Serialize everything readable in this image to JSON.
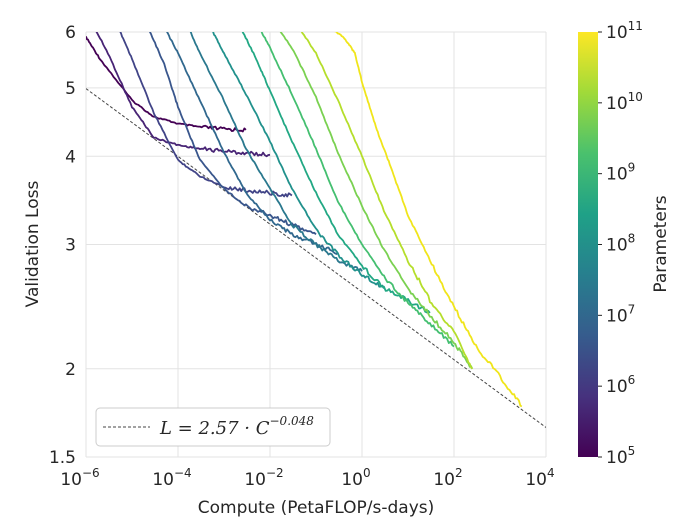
{
  "chart_data": {
    "type": "line",
    "xlabel": "Compute (PetaFLOP/s-days)",
    "ylabel": "Validation Loss",
    "xscale": "log",
    "yscale": "log",
    "xlim": [
      1e-06,
      10000
    ],
    "ylim": [
      1.5,
      6
    ],
    "x_ticks": [
      {
        "base": "10",
        "exp": "−6"
      },
      {
        "base": "10",
        "exp": "−4"
      },
      {
        "base": "10",
        "exp": "−2"
      },
      {
        "base": "10",
        "exp": "0"
      },
      {
        "base": "10",
        "exp": "2"
      },
      {
        "base": "10",
        "exp": "4"
      }
    ],
    "y_ticks": [
      "1.5",
      "2",
      "3",
      "4",
      "5",
      "6"
    ],
    "grid": true,
    "legend": {
      "placement": "lower-left",
      "entry": {
        "base": "L = 2.57 · C",
        "exp": "−0.048"
      }
    },
    "fit_line": {
      "coef": 2.57,
      "exponent": -0.048,
      "style": "dashed",
      "color": "#444444"
    },
    "colorbar": {
      "label": "Parameters",
      "scale": "log",
      "range": [
        100000.0,
        100000000000.0
      ],
      "ticks": [
        {
          "base": "10",
          "exp": "5"
        },
        {
          "base": "10",
          "exp": "6"
        },
        {
          "base": "10",
          "exp": "7"
        },
        {
          "base": "10",
          "exp": "8"
        },
        {
          "base": "10",
          "exp": "9"
        },
        {
          "base": "10",
          "exp": "10"
        },
        {
          "base": "10",
          "exp": "11"
        }
      ],
      "colormap": [
        "#440154",
        "#46327e",
        "#365c8d",
        "#277f8e",
        "#1fa187",
        "#4ac16d",
        "#a0da39",
        "#fde725"
      ]
    },
    "series": [
      {
        "params": 100000.0,
        "color": "#440154",
        "points": [
          [
            1e-06,
            5.9
          ],
          [
            2e-06,
            5.5
          ],
          [
            1e-05,
            4.8
          ],
          [
            3e-05,
            4.55
          ],
          [
            0.0001,
            4.45
          ],
          [
            0.0003,
            4.4
          ],
          [
            0.001,
            4.37
          ],
          [
            0.003,
            4.36
          ]
        ]
      },
      {
        "params": 300000.0,
        "color": "#482475",
        "points": [
          [
            1e-06,
            6.4
          ],
          [
            3e-06,
            5.6
          ],
          [
            1e-05,
            4.7
          ],
          [
            3e-05,
            4.25
          ],
          [
            0.0001,
            4.15
          ],
          [
            0.0003,
            4.1
          ],
          [
            0.001,
            4.07
          ],
          [
            0.003,
            4.04
          ],
          [
            0.01,
            4.02
          ]
        ]
      },
      {
        "params": 1000000.0,
        "color": "#414487",
        "points": [
          [
            5e-06,
            6.1
          ],
          [
            1e-05,
            5.5
          ],
          [
            3e-05,
            4.6
          ],
          [
            0.0001,
            3.95
          ],
          [
            0.0003,
            3.75
          ],
          [
            0.001,
            3.62
          ],
          [
            0.003,
            3.58
          ],
          [
            0.01,
            3.55
          ],
          [
            0.03,
            3.52
          ]
        ]
      },
      {
        "params": 3000000.0,
        "color": "#39568c",
        "points": [
          [
            2e-05,
            6.2
          ],
          [
            5e-05,
            5.4
          ],
          [
            0.0001,
            4.7
          ],
          [
            0.0003,
            3.95
          ],
          [
            0.001,
            3.6
          ],
          [
            0.003,
            3.4
          ],
          [
            0.01,
            3.3
          ],
          [
            0.03,
            3.2
          ],
          [
            0.1,
            3.1
          ]
        ]
      },
      {
        "params": 10000000.0,
        "color": "#31688e",
        "points": [
          [
            5e-05,
            6.1
          ],
          [
            0.0001,
            5.6
          ],
          [
            0.0003,
            4.8
          ],
          [
            0.001,
            4.05
          ],
          [
            0.003,
            3.55
          ],
          [
            0.01,
            3.25
          ],
          [
            0.03,
            3.1
          ],
          [
            0.1,
            3.0
          ],
          [
            0.3,
            2.92
          ]
        ]
      },
      {
        "params": 30000000.0,
        "color": "#2a788e",
        "points": [
          [
            0.00015,
            6.2
          ],
          [
            0.0003,
            5.6
          ],
          [
            0.001,
            4.8
          ],
          [
            0.003,
            4.1
          ],
          [
            0.01,
            3.6
          ],
          [
            0.03,
            3.2
          ],
          [
            0.1,
            3.0
          ],
          [
            0.3,
            2.85
          ],
          [
            1,
            2.75
          ]
        ]
      },
      {
        "params": 100000000.0,
        "color": "#21918c",
        "points": [
          [
            0.0005,
            6.1
          ],
          [
            0.001,
            5.6
          ],
          [
            0.003,
            4.9
          ],
          [
            0.01,
            4.2
          ],
          [
            0.03,
            3.6
          ],
          [
            0.1,
            3.15
          ],
          [
            0.3,
            2.9
          ],
          [
            1,
            2.72
          ],
          [
            3,
            2.6
          ]
        ]
      },
      {
        "params": 300000000.0,
        "color": "#22a884",
        "points": [
          [
            0.002,
            6.2
          ],
          [
            0.005,
            5.5
          ],
          [
            0.01,
            4.95
          ],
          [
            0.03,
            4.2
          ],
          [
            0.1,
            3.55
          ],
          [
            0.3,
            3.1
          ],
          [
            1,
            2.8
          ],
          [
            3,
            2.6
          ],
          [
            10,
            2.5
          ],
          [
            30,
            2.4
          ]
        ]
      },
      {
        "params": 1000000000.0,
        "color": "#44bf70",
        "points": [
          [
            0.005,
            6.2
          ],
          [
            0.01,
            5.7
          ],
          [
            0.03,
            4.9
          ],
          [
            0.1,
            4.1
          ],
          [
            0.3,
            3.45
          ],
          [
            1,
            3.0
          ],
          [
            3,
            2.7
          ],
          [
            10,
            2.48
          ],
          [
            30,
            2.32
          ],
          [
            100,
            2.15
          ]
        ]
      },
      {
        "params": 3000000000.0,
        "color": "#7ad151",
        "points": [
          [
            0.01,
            6.3
          ],
          [
            0.03,
            5.7
          ],
          [
            0.1,
            4.85
          ],
          [
            0.3,
            4.05
          ],
          [
            1,
            3.4
          ],
          [
            3,
            2.95
          ],
          [
            10,
            2.6
          ],
          [
            30,
            2.38
          ],
          [
            100,
            2.18
          ],
          [
            250,
            2.0
          ]
        ]
      },
      {
        "params": 10000000000.0,
        "color": "#b5de2b",
        "points": [
          [
            0.03,
            6.3
          ],
          [
            0.1,
            5.6
          ],
          [
            0.3,
            4.8
          ],
          [
            1,
            4.0
          ],
          [
            3,
            3.35
          ],
          [
            10,
            2.85
          ],
          [
            30,
            2.5
          ],
          [
            100,
            2.25
          ],
          [
            250,
            2.0
          ]
        ]
      },
      {
        "params": 175000000000.0,
        "color": "#f0e51b",
        "points": [
          [
            0.2,
            6.1
          ],
          [
            0.4,
            5.9
          ],
          [
            0.7,
            5.6
          ],
          [
            1,
            5.1
          ],
          [
            2,
            4.4
          ],
          [
            4,
            3.9
          ],
          [
            10,
            3.3
          ],
          [
            30,
            2.85
          ],
          [
            100,
            2.45
          ],
          [
            300,
            2.15
          ],
          [
            1000,
            1.95
          ],
          [
            3000,
            1.77
          ]
        ]
      }
    ]
  }
}
